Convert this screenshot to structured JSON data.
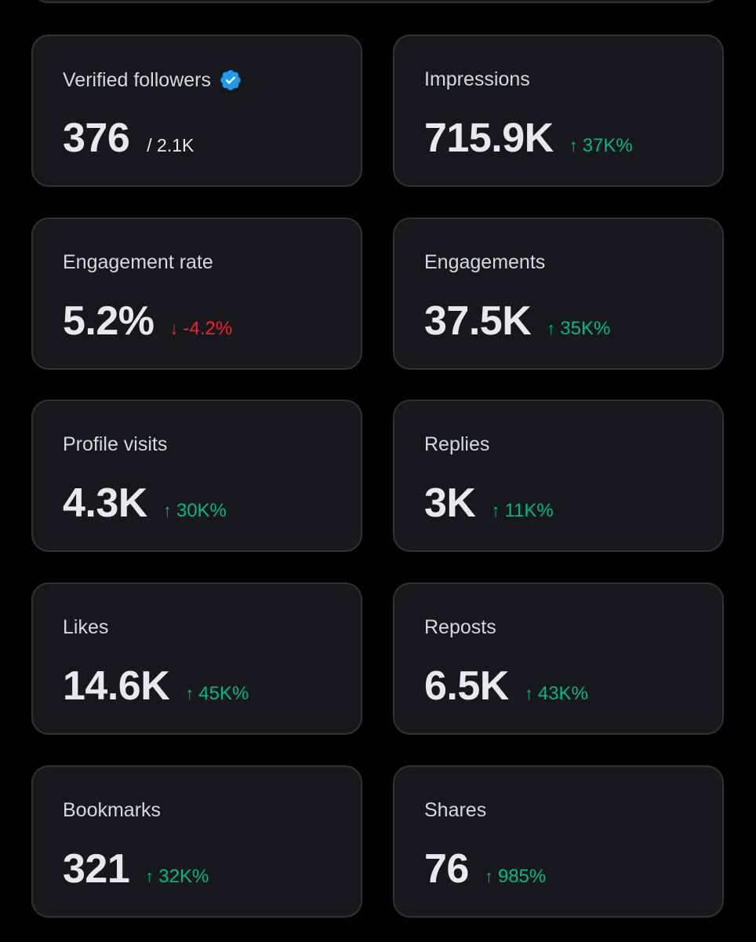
{
  "colors": {
    "background": "#000000",
    "card": "#16181c",
    "border": "#2f3336",
    "positive": "#00ba7c",
    "negative": "#f4212e",
    "verified": "#1d9bf0"
  },
  "metrics": [
    {
      "label": "Verified followers",
      "value": "376",
      "sub": "/ 2.1K",
      "icon": "verified-badge-icon"
    },
    {
      "label": "Impressions",
      "value": "715.9K",
      "delta": "37K%",
      "direction": "up"
    },
    {
      "label": "Engagement rate",
      "value": "5.2%",
      "delta": "-4.2%",
      "direction": "down"
    },
    {
      "label": "Engagements",
      "value": "37.5K",
      "delta": "35K%",
      "direction": "up"
    },
    {
      "label": "Profile visits",
      "value": "4.3K",
      "delta": "30K%",
      "direction": "up"
    },
    {
      "label": "Replies",
      "value": "3K",
      "delta": "11K%",
      "direction": "up"
    },
    {
      "label": "Likes",
      "value": "14.6K",
      "delta": "45K%",
      "direction": "up"
    },
    {
      "label": "Reposts",
      "value": "6.5K",
      "delta": "43K%",
      "direction": "up"
    },
    {
      "label": "Bookmarks",
      "value": "321",
      "delta": "32K%",
      "direction": "up"
    },
    {
      "label": "Shares",
      "value": "76",
      "delta": "985%",
      "direction": "up"
    }
  ],
  "arrows": {
    "up": "↑",
    "down": "↓"
  }
}
